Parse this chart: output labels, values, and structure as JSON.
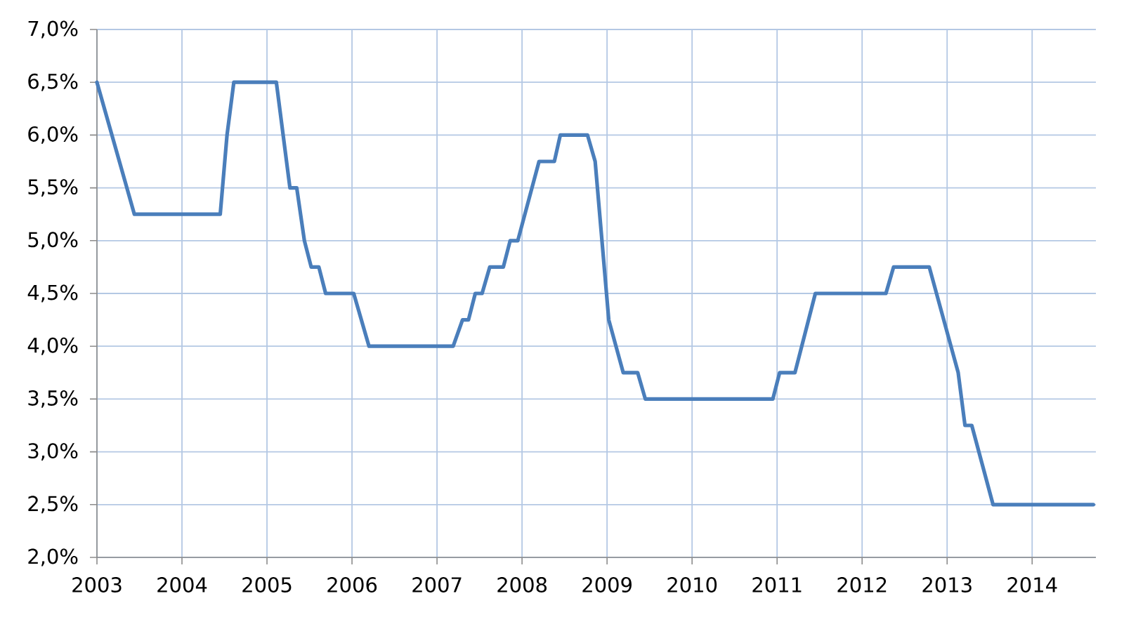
{
  "chart_data": {
    "type": "line",
    "x": [
      2003.0,
      2003.44,
      2004.45,
      2004.53,
      2004.61,
      2005.11,
      2005.27,
      2005.35,
      2005.44,
      2005.52,
      2005.61,
      2005.69,
      2006.02,
      2006.2,
      2007.19,
      2007.3,
      2007.37,
      2007.45,
      2007.53,
      2007.62,
      2007.78,
      2007.86,
      2007.95,
      2008.2,
      2008.38,
      2008.45,
      2008.77,
      2008.86,
      2009.02,
      2009.19,
      2009.36,
      2009.45,
      2010.95,
      2011.03,
      2011.21,
      2011.45,
      2012.28,
      2012.37,
      2012.79,
      2013.13,
      2013.21,
      2013.29,
      2013.54,
      2014.72
    ],
    "values": [
      6.5,
      5.25,
      5.25,
      6.0,
      6.5,
      6.5,
      5.5,
      5.5,
      5.0,
      4.75,
      4.75,
      4.5,
      4.5,
      4.0,
      4.0,
      4.25,
      4.25,
      4.5,
      4.5,
      4.75,
      4.75,
      5.0,
      5.0,
      5.75,
      5.75,
      6.0,
      6.0,
      5.75,
      4.25,
      3.75,
      3.75,
      3.5,
      3.5,
      3.75,
      3.75,
      4.5,
      4.5,
      4.75,
      4.75,
      3.75,
      3.25,
      3.25,
      2.5,
      2.5
    ],
    "color": "#4a7ebb",
    "line_style": "solid",
    "xlim": [
      2003,
      2014.75
    ],
    "xticks": [
      2003,
      2004,
      2005,
      2006,
      2007,
      2008,
      2009,
      2010,
      2011,
      2012,
      2013,
      2014
    ],
    "ylim": [
      2.0,
      7.0
    ],
    "yticks": [
      {
        "value": 2.0,
        "label": "2,0%"
      },
      {
        "value": 2.5,
        "label": "2,5%"
      },
      {
        "value": 3.0,
        "label": "3,0%"
      },
      {
        "value": 3.5,
        "label": "3,5%"
      },
      {
        "value": 4.0,
        "label": "4,0%"
      },
      {
        "value": 4.5,
        "label": "4,5%"
      },
      {
        "value": 5.0,
        "label": "5,0%"
      },
      {
        "value": 5.5,
        "label": "5,5%"
      },
      {
        "value": 6.0,
        "label": "6,0%"
      },
      {
        "value": 6.5,
        "label": "6,5%"
      },
      {
        "value": 7.0,
        "label": "7,0%"
      }
    ],
    "grid": true
  }
}
